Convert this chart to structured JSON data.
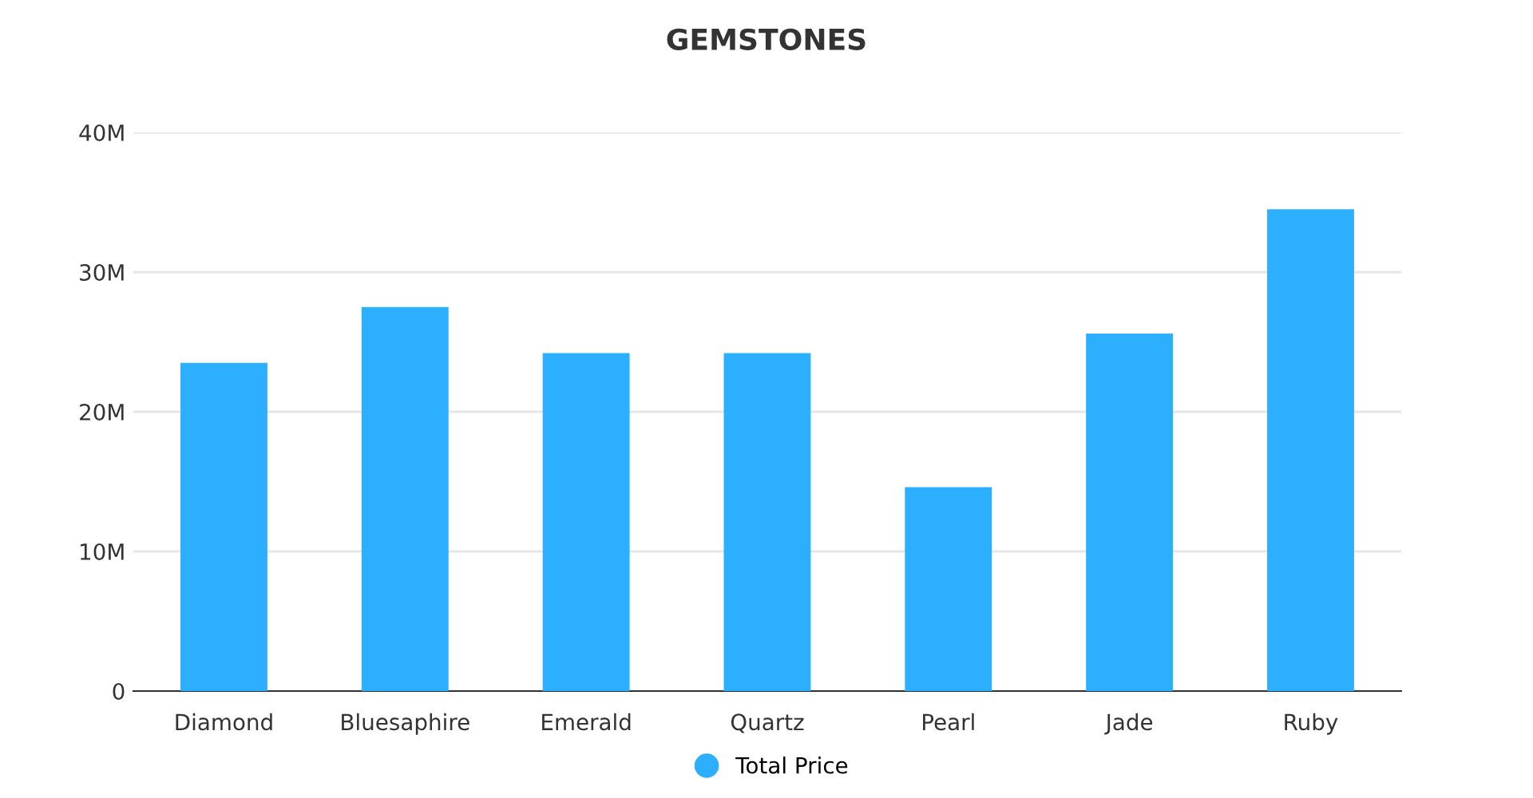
{
  "chart_data": {
    "type": "bar",
    "title": "GEMSTONES",
    "categories": [
      "Diamond",
      "Bluesaphire",
      "Emerald",
      "Quartz",
      "Pearl",
      "Jade",
      "Ruby"
    ],
    "series": [
      {
        "name": "Total Price",
        "color": "#2caffe",
        "values": [
          23.5,
          27.5,
          24.2,
          24.2,
          14.6,
          25.6,
          34.5
        ]
      }
    ],
    "ylim": [
      0,
      40
    ],
    "yticks": [
      {
        "value": 0,
        "label": "0"
      },
      {
        "value": 10,
        "label": "10M"
      },
      {
        "value": 20,
        "label": "20M"
      },
      {
        "value": 30,
        "label": "30M"
      },
      {
        "value": 40,
        "label": "40M"
      }
    ],
    "grid": "y",
    "legend": "bottom"
  }
}
